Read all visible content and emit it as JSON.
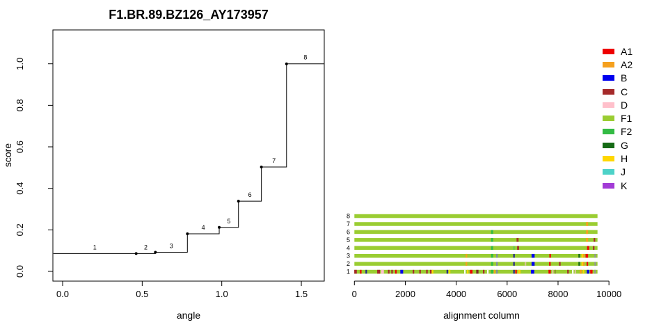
{
  "title": "F1.BR.89.BZ126_AY173957",
  "chart_data": [
    {
      "type": "line",
      "subtype": "step-function",
      "title": "F1.BR.89.BZ126_AY173957",
      "xlabel": "angle",
      "ylabel": "score",
      "xlim": [
        -0.06,
        1.64
      ],
      "ylim": [
        -0.05,
        1.16
      ],
      "xticks": [
        "0.0",
        "0.5",
        "1.0",
        "1.5"
      ],
      "xtick_values": [
        0.0,
        0.5,
        1.0,
        1.5
      ],
      "yticks": [
        "0.0",
        "0.2",
        "0.4",
        "0.6",
        "0.8",
        "1.0"
      ],
      "ytick_values": [
        0.0,
        0.2,
        0.4,
        0.6,
        0.8,
        1.0
      ],
      "grid": false,
      "segments": [
        {
          "label": "1",
          "x0": -0.058,
          "x1": 0.462,
          "y": 0.086
        },
        {
          "label": "2",
          "x0": 0.462,
          "x1": 0.583,
          "y": 0.086
        },
        {
          "label": "3",
          "x0": 0.583,
          "x1": 0.784,
          "y": 0.092
        },
        {
          "label": "4",
          "x0": 0.784,
          "x1": 0.984,
          "y": 0.181
        },
        {
          "label": "5",
          "x0": 0.984,
          "x1": 1.105,
          "y": 0.212
        },
        {
          "label": "6",
          "x0": 1.105,
          "x1": 1.249,
          "y": 0.338
        },
        {
          "label": "7",
          "x0": 1.249,
          "x1": 1.407,
          "y": 0.503
        },
        {
          "label": "8",
          "x0": 1.407,
          "x1": 1.644,
          "y": 1.0
        }
      ],
      "points": [
        [
          0.462,
          0.086
        ],
        [
          0.583,
          0.092
        ],
        [
          0.784,
          0.181
        ],
        [
          0.984,
          0.212
        ],
        [
          1.105,
          0.338
        ],
        [
          1.249,
          0.503
        ],
        [
          1.407,
          1.0
        ]
      ]
    },
    {
      "type": "bar",
      "subtype": "alignment-segment-rows",
      "xlabel": "alignment column",
      "xticks": [
        "0",
        "2000",
        "4000",
        "6000",
        "8000",
        "10000"
      ],
      "xtick_values": [
        0,
        2000,
        4000,
        6000,
        8000,
        10000
      ],
      "row_length": 9550,
      "base_color": "#9ACD32",
      "rows": [
        {
          "label": "1",
          "ticks": [
            {
              "col": 45,
              "color": "#A52A2A",
              "w": 100
            },
            {
              "col": 250,
              "color": "#EE0000"
            },
            {
              "col": 465,
              "color": "#26268C"
            },
            {
              "col": 950,
              "color": "#A52A2A",
              "w": 110
            },
            {
              "col": 1100,
              "color": "#FFC0CB",
              "w": 120
            },
            {
              "col": 1350,
              "color": "#A52A2A"
            },
            {
              "col": 1480,
              "color": "#A52A2A"
            },
            {
              "col": 1630,
              "color": "#EE0000"
            },
            {
              "col": 1860,
              "color": "#0000EE",
              "w": 110
            },
            {
              "col": 2320,
              "color": "#A52A2A"
            },
            {
              "col": 2580,
              "color": "#A52A2A"
            },
            {
              "col": 2850,
              "color": "#A52A2A"
            },
            {
              "col": 3000,
              "color": "#A52A2A"
            },
            {
              "col": 3070,
              "color": "#FFD700"
            },
            {
              "col": 3650,
              "color": "#26268C"
            },
            {
              "col": 3740,
              "color": "#FFD700"
            },
            {
              "col": 4340,
              "color": "#FFFFFF"
            },
            {
              "col": 4450,
              "color": "#FFD700"
            },
            {
              "col": 4590,
              "color": "#EE0000",
              "w": 100
            },
            {
              "col": 4830,
              "color": "#7B2D26",
              "w": 90
            },
            {
              "col": 5080,
              "color": "#A52A2A"
            },
            {
              "col": 5240,
              "color": "#FFFFFF"
            },
            {
              "col": 5410,
              "color": "#33BB44",
              "w": 90
            },
            {
              "col": 5510,
              "color": "#F5A01E"
            },
            {
              "col": 5600,
              "color": "#7C8CA6"
            },
            {
              "col": 6270,
              "color": "#26268C"
            },
            {
              "col": 6350,
              "color": "#EE0000"
            },
            {
              "col": 6480,
              "color": "#FFD700",
              "w": 90
            },
            {
              "col": 7000,
              "color": "#0000EE",
              "w": 130
            },
            {
              "col": 7670,
              "color": "#EE0000",
              "w": 90
            },
            {
              "col": 7790,
              "color": "#D9C49A"
            },
            {
              "col": 7890,
              "color": "#8F9A2E"
            },
            {
              "col": 8390,
              "color": "#A52A2A"
            },
            {
              "col": 8580,
              "color": "#FFFFFF"
            },
            {
              "col": 8680,
              "color": "#D9C49A"
            },
            {
              "col": 8890,
              "color": "#F5A01E",
              "w": 80
            },
            {
              "col": 9000,
              "color": "#FFD700"
            },
            {
              "col": 9180,
              "color": "#0000EE",
              "w": 100
            },
            {
              "col": 9310,
              "color": "#EE0000",
              "w": 90
            },
            {
              "col": 9450,
              "color": "#969696"
            }
          ]
        },
        {
          "label": "2",
          "ticks": [
            {
              "col": 4400,
              "color": "#F5A01E"
            },
            {
              "col": 5410,
              "color": "#33BB44",
              "w": 80
            },
            {
              "col": 5600,
              "color": "#7C8CA6"
            },
            {
              "col": 6270,
              "color": "#26268C"
            },
            {
              "col": 6720,
              "color": "#D9C49A"
            },
            {
              "col": 7020,
              "color": "#0000EE",
              "w": 120
            },
            {
              "col": 7680,
              "color": "#EE0000"
            },
            {
              "col": 8070,
              "color": "#A52A2A"
            },
            {
              "col": 8830,
              "color": "#156B15"
            },
            {
              "col": 8950,
              "color": "#FFD700"
            },
            {
              "col": 9010,
              "color": "#F5A01E"
            },
            {
              "col": 9150,
              "color": "#EE0000"
            },
            {
              "col": 9460,
              "color": "#969696"
            }
          ]
        },
        {
          "label": "3",
          "ticks": [
            {
              "col": 4400,
              "color": "#F5A01E"
            },
            {
              "col": 5410,
              "color": "#33BB44",
              "w": 80
            },
            {
              "col": 5600,
              "color": "#7C8CA6"
            },
            {
              "col": 6270,
              "color": "#26268C"
            },
            {
              "col": 7020,
              "color": "#0000EE",
              "w": 120
            },
            {
              "col": 7690,
              "color": "#EE0000"
            },
            {
              "col": 8830,
              "color": "#156B15"
            },
            {
              "col": 8950,
              "color": "#FFD700"
            },
            {
              "col": 9010,
              "color": "#F5A01E"
            },
            {
              "col": 9130,
              "color": "#EE0000",
              "w": 100
            },
            {
              "col": 9460,
              "color": "#969696"
            }
          ]
        },
        {
          "label": "4",
          "ticks": [
            {
              "col": 5410,
              "color": "#33BB44",
              "w": 80
            },
            {
              "col": 6270,
              "color": "#66C74E"
            },
            {
              "col": 6430,
              "color": "#A03A20",
              "w": 80
            },
            {
              "col": 9180,
              "color": "#EE0000",
              "w": 80
            },
            {
              "col": 9400,
              "color": "#A52A2A"
            }
          ]
        },
        {
          "label": "5",
          "ticks": [
            {
              "col": 5410,
              "color": "#33BB44",
              "w": 80
            },
            {
              "col": 6410,
              "color": "#A03A20",
              "w": 80
            },
            {
              "col": 9140,
              "color": "#F5A01E",
              "w": 80
            },
            {
              "col": 9430,
              "color": "#A52A2A"
            }
          ]
        },
        {
          "label": "6",
          "ticks": [
            {
              "col": 5410,
              "color": "#33BB44",
              "w": 80
            },
            {
              "col": 9140,
              "color": "#F5A01E",
              "w": 80
            }
          ]
        },
        {
          "label": "7",
          "ticks": [
            {
              "col": 9140,
              "color": "#F5A01E",
              "w": 80
            }
          ]
        },
        {
          "label": "8",
          "ticks": []
        }
      ]
    }
  ],
  "legend": {
    "entries": [
      {
        "label": "A1",
        "color": "#EE0000"
      },
      {
        "label": "A2",
        "color": "#F5A01E"
      },
      {
        "label": "B",
        "color": "#0000EE"
      },
      {
        "label": "C",
        "color": "#A52A2A"
      },
      {
        "label": "D",
        "color": "#FFC0CB"
      },
      {
        "label": "F1",
        "color": "#9ACD32"
      },
      {
        "label": "F2",
        "color": "#33BB44"
      },
      {
        "label": "G",
        "color": "#156B15"
      },
      {
        "label": "H",
        "color": "#FFD700"
      },
      {
        "label": "J",
        "color": "#4DD2C8"
      },
      {
        "label": "K",
        "color": "#A23BD6"
      }
    ]
  }
}
